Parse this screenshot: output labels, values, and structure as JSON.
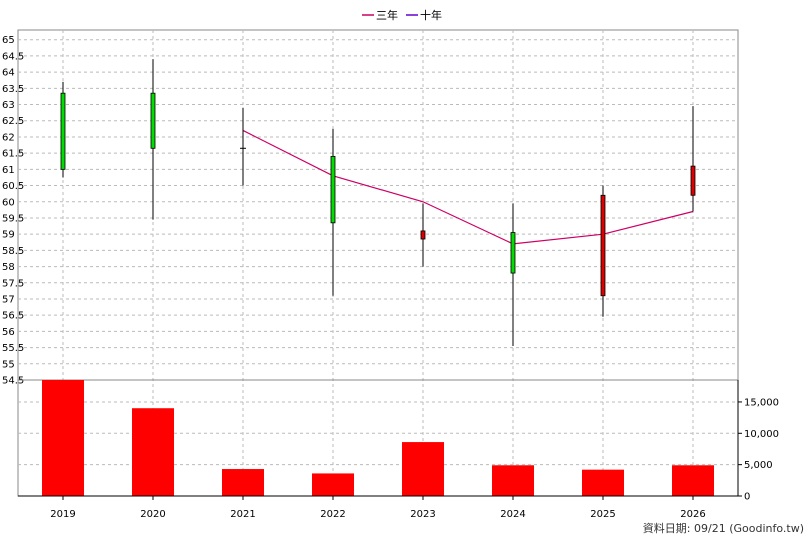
{
  "legend": {
    "ma3_label": "三年",
    "ma10_label": "十年"
  },
  "footer": "資料日期: 09/21  (Goodinfo.tw)",
  "colors": {
    "up": "#00dd00",
    "down": "#dd0000",
    "ma3": "#cc0066",
    "ma10": "#6600cc",
    "volume": "#ff0000"
  },
  "chart_data": [
    {
      "type": "candlestick",
      "categories": [
        "2019",
        "2020",
        "2021",
        "2022",
        "2023",
        "2024",
        "2025",
        "2026"
      ],
      "ylim": [
        54.5,
        65.3
      ],
      "yticks": [
        "54.5",
        "55",
        "55.5",
        "56",
        "56.5",
        "57",
        "57.5",
        "58",
        "58.5",
        "59",
        "59.5",
        "60",
        "60.5",
        "61",
        "61.5",
        "62",
        "62.5",
        "63",
        "63.5",
        "64",
        "64.5",
        "65"
      ],
      "candles": [
        {
          "open": 61.0,
          "close": 63.35,
          "high": 63.7,
          "low": 60.75
        },
        {
          "open": 61.65,
          "close": 63.35,
          "high": 64.4,
          "low": 59.45
        },
        {
          "open": 61.65,
          "close": 61.65,
          "high": 62.9,
          "low": 60.5
        },
        {
          "open": 59.35,
          "close": 61.4,
          "high": 62.25,
          "low": 57.1
        },
        {
          "open": 59.1,
          "close": 58.85,
          "high": 59.95,
          "low": 58.0
        },
        {
          "open": 57.8,
          "close": 59.05,
          "high": 59.95,
          "low": 55.55
        },
        {
          "open": 60.2,
          "close": 57.1,
          "high": 60.5,
          "low": 56.45
        },
        {
          "open": 61.1,
          "close": 60.2,
          "high": 62.95,
          "low": 59.7
        }
      ],
      "ma3": [
        null,
        null,
        62.2,
        60.8,
        60.0,
        58.7,
        59.0,
        59.7
      ],
      "ma10": []
    },
    {
      "type": "bar",
      "categories": [
        "2019",
        "2020",
        "2021",
        "2022",
        "2023",
        "2024",
        "2025",
        "2026"
      ],
      "values": [
        18500,
        14000,
        4300,
        3600,
        8600,
        4900,
        4200,
        4900
      ],
      "ylim": [
        0,
        18500
      ],
      "yticks": [
        "0",
        "5,000",
        "10,000",
        "15,000"
      ],
      "ytick_values": [
        0,
        5000,
        10000,
        15000
      ]
    }
  ]
}
